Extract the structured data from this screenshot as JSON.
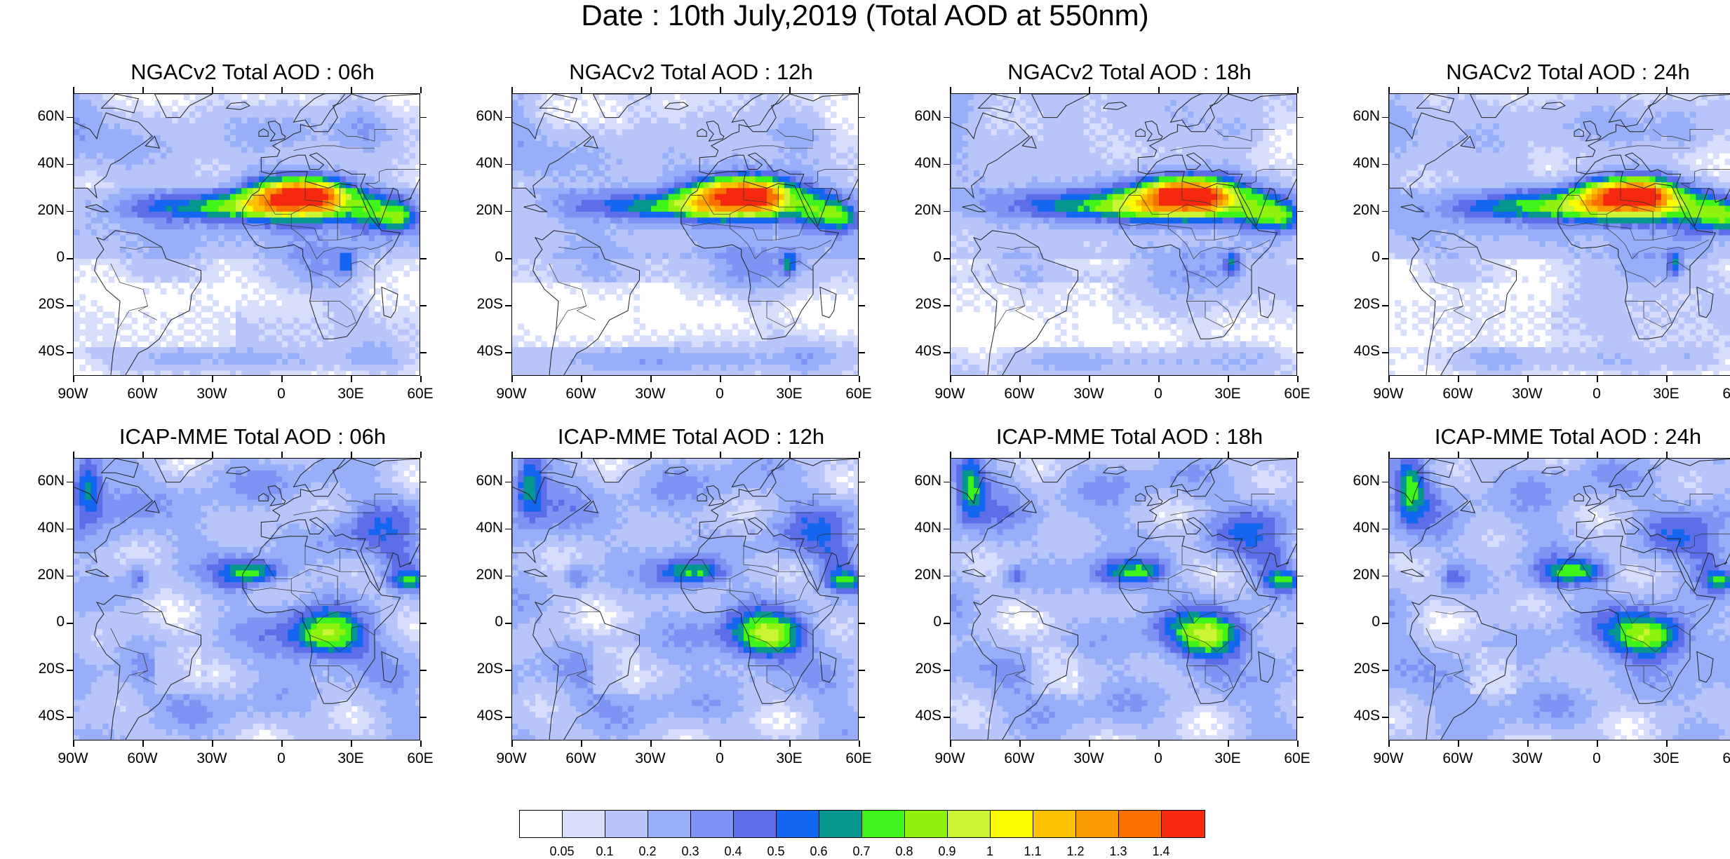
{
  "figure": {
    "title": "Date : 10th July,2019 (Total AOD at 550nm)"
  },
  "axes": {
    "lat_labels": [
      "60N",
      "40N",
      "20N",
      "0",
      "20S",
      "40S"
    ],
    "lat_values": [
      60,
      40,
      20,
      0,
      -20,
      -40
    ],
    "lon_labels": [
      "90W",
      "60W",
      "30W",
      "0",
      "30E",
      "60E"
    ],
    "lon_values": [
      -90,
      -60,
      -30,
      0,
      30,
      60
    ],
    "lat_range": [
      -50,
      70
    ],
    "lon_range": [
      -90,
      60
    ]
  },
  "panels": [
    {
      "title": "NGACv2 Total AOD : 06h",
      "model": "NGACv2",
      "hour": "06h"
    },
    {
      "title": "NGACv2 Total AOD : 12h",
      "model": "NGACv2",
      "hour": "12h"
    },
    {
      "title": "NGACv2 Total AOD : 18h",
      "model": "NGACv2",
      "hour": "18h"
    },
    {
      "title": "NGACv2 Total AOD : 24h",
      "model": "NGACv2",
      "hour": "24h"
    },
    {
      "title": "ICAP-MME Total AOD : 06h",
      "model": "ICAP-MME",
      "hour": "06h"
    },
    {
      "title": "ICAP-MME Total AOD : 12h",
      "model": "ICAP-MME",
      "hour": "12h"
    },
    {
      "title": "ICAP-MME Total AOD : 18h",
      "model": "ICAP-MME",
      "hour": "18h"
    },
    {
      "title": "ICAP-MME Total AOD : 24h",
      "model": "ICAP-MME",
      "hour": "24h"
    }
  ],
  "colorbar": {
    "labels": [
      "0.05",
      "0.1",
      "0.2",
      "0.3",
      "0.4",
      "0.5",
      "0.6",
      "0.7",
      "0.8",
      "0.9",
      "1",
      "1.1",
      "1.2",
      "1.3",
      "1.4"
    ],
    "colors": [
      "#ffffff",
      "#d7defc",
      "#b8c5fa",
      "#98aef8",
      "#7f93f4",
      "#5e6de8",
      "#1465f0",
      "#05968f",
      "#3ef41a",
      "#8ef20d",
      "#c9f534",
      "#fafa00",
      "#fac200",
      "#fa9a00",
      "#fa7000",
      "#f52810"
    ]
  }
}
